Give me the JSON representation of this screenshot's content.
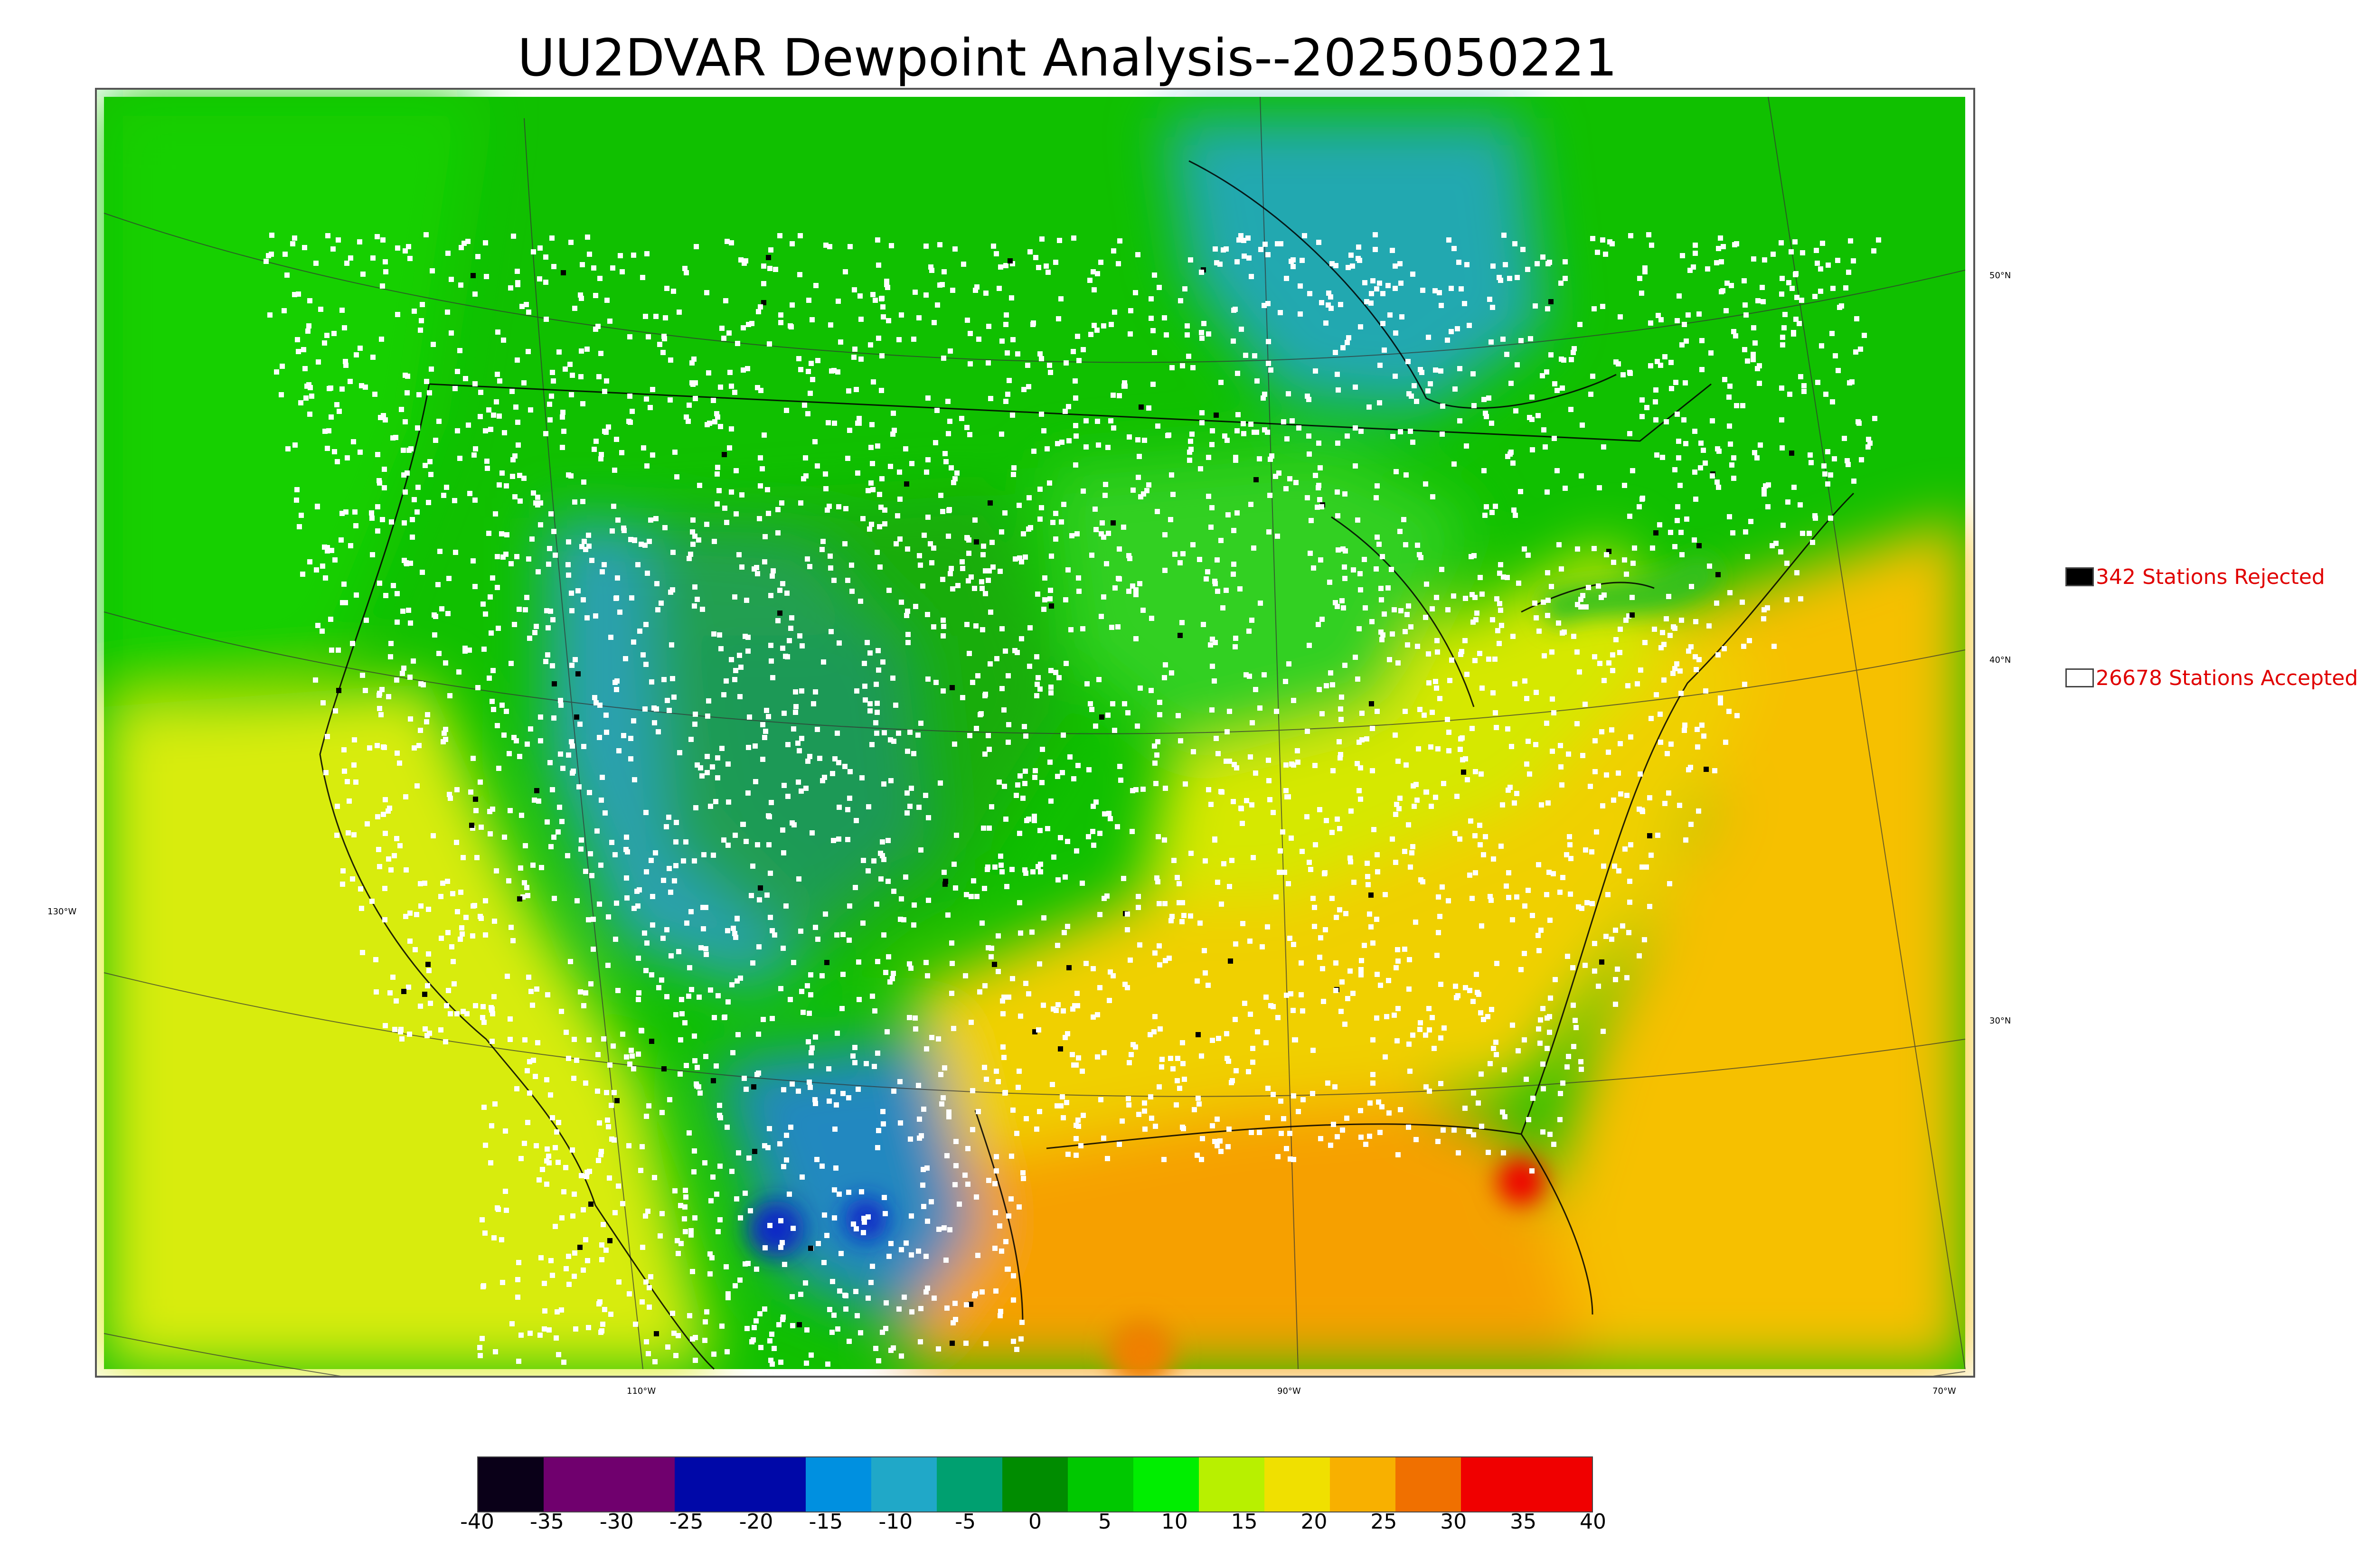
{
  "title": "UU2DVAR Dewpoint Analysis--2025050221",
  "lon_labels": [
    "130°W",
    "110°W",
    "90°W",
    "70°W"
  ],
  "lat_labels": [
    "50°N",
    "40°N",
    "30°N"
  ],
  "legend": {
    "rejected": {
      "label": "342 Stations Rejected",
      "count": 342,
      "color": "#000000"
    },
    "accepted": {
      "label": "26678 Stations Accepted",
      "count": 26678,
      "color": "#ffffff"
    }
  },
  "colorbar": {
    "ticks": [
      "-40",
      "-35",
      "-30",
      "-25",
      "-20",
      "-15",
      "-10",
      "-5",
      "0",
      "5",
      "10",
      "15",
      "20",
      "25",
      "30",
      "35",
      "40"
    ],
    "range": [
      -40,
      40
    ],
    "colors": [
      "#0a0018",
      "#70006e",
      "#70006e",
      "#0008a8",
      "#0008a8",
      "#0090e0",
      "#20a8c8",
      "#00a070",
      "#008c00",
      "#00c800",
      "#00ee00",
      "#b8f000",
      "#f0e000",
      "#f8b000",
      "#f07000",
      "#f00000",
      "#f00000"
    ]
  },
  "map": {
    "field_colors": {
      "ocean_pacific": "#d8ec10",
      "ocean_atlantic": "#f6c000",
      "gulf": "#f6a000",
      "north_green": "#10c000",
      "plains_green": "#20b010",
      "dry_blue": "#2aa0b0",
      "mexico_dry": "#2088c0",
      "southeast": "#f0d000",
      "midwest_green": "#30d020",
      "hudson_blue": "#20a8b0"
    }
  }
}
